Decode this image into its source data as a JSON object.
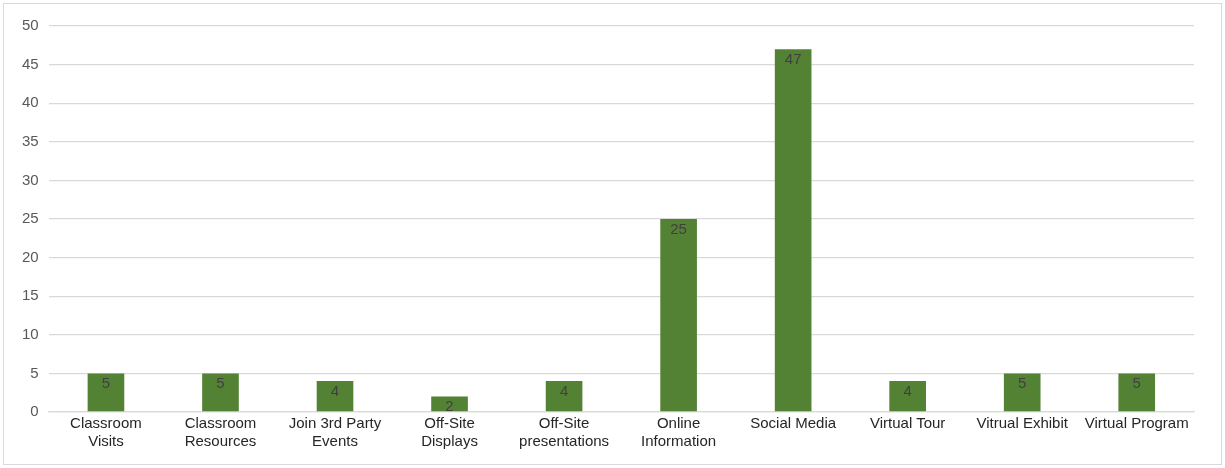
{
  "chart_data": {
    "type": "bar",
    "categories": [
      "Classroom Visits",
      "Classroom Resources",
      "Join 3rd Party Events",
      "Off-Site Displays",
      "Off-Site presentations",
      "Online Information",
      "Social Media",
      "Virtual Tour",
      "Vitrual Exhibit",
      "Virtual Program"
    ],
    "values": [
      5,
      5,
      4,
      2,
      4,
      25,
      47,
      4,
      5,
      5
    ],
    "color": "#548235",
    "ylim": [
      0,
      50
    ],
    "yticks": [
      0,
      5,
      10,
      15,
      20,
      25,
      30,
      35,
      40,
      45,
      50
    ],
    "grid": "y",
    "legend": false,
    "data_labels": true
  }
}
